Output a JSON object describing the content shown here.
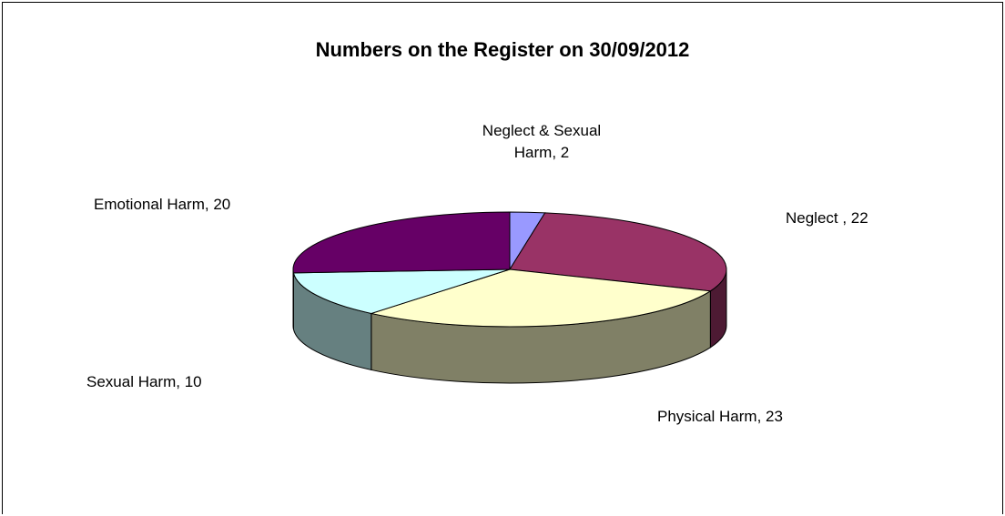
{
  "chart_data": {
    "type": "pie",
    "title": "Numbers on the Register on 30/09/2012",
    "slices": [
      {
        "name": "Neglect & Sexual Harm",
        "value": 2,
        "color": "#9999ff",
        "label": "Neglect & Sexual\nHarm, 2"
      },
      {
        "name": "Neglect",
        "value": 22,
        "color": "#993366",
        "label": "Neglect , 22"
      },
      {
        "name": "Physical Harm",
        "value": 23,
        "color": "#ffffcc",
        "label": "Physical Harm, 23"
      },
      {
        "name": "Sexual Harm",
        "value": 10,
        "color": "#ccffff",
        "label": "Sexual Harm, 10"
      },
      {
        "name": "Emotional Harm",
        "value": 20,
        "color": "#660066",
        "label": "Emotional Harm, 20"
      }
    ],
    "style": "3d",
    "legend": "none"
  }
}
